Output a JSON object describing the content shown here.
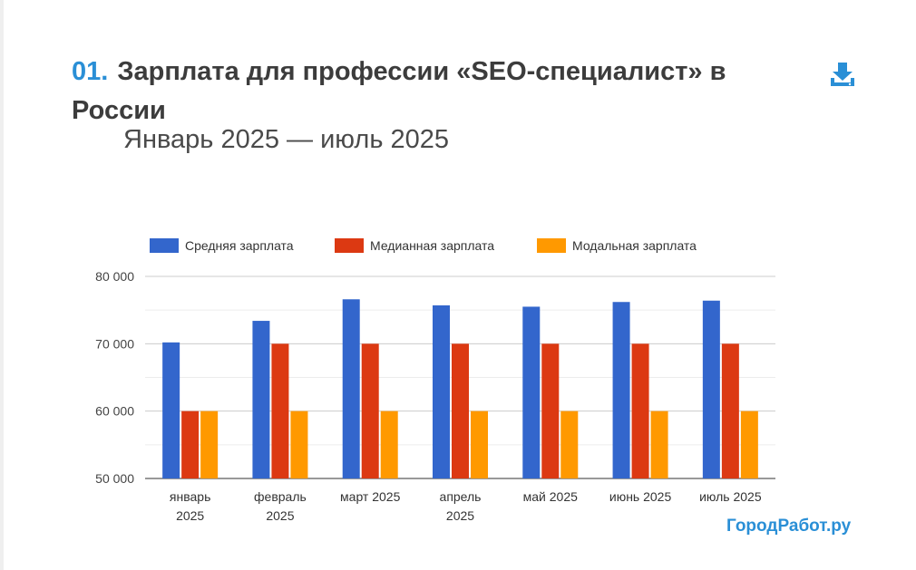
{
  "header": {
    "number": "01.",
    "title": "Зарплата для профессии «SEO-специалист» в России",
    "subtitle": "Январь 2025 — июль 2025"
  },
  "icons": {
    "download": "download-icon"
  },
  "brand": {
    "text": "ГородРабот.ру"
  },
  "colors": {
    "accent": "#2a8fd6",
    "series": [
      "#3366cc",
      "#dc3912",
      "#ff9900"
    ]
  },
  "chart_data": {
    "type": "bar",
    "categories": [
      [
        "январь",
        "2025"
      ],
      [
        "февраль",
        "2025"
      ],
      [
        "март 2025"
      ],
      [
        "апрель",
        "2025"
      ],
      [
        "май 2025"
      ],
      [
        "июнь 2025"
      ],
      [
        "июль 2025"
      ]
    ],
    "series": [
      {
        "name": "Средняя зарплата",
        "values": [
          70200,
          73400,
          76600,
          75700,
          75500,
          76200,
          76400
        ]
      },
      {
        "name": "Медианная зарплата",
        "values": [
          60000,
          70000,
          70000,
          70000,
          70000,
          70000,
          70000
        ]
      },
      {
        "name": "Модальная зарплата",
        "values": [
          60000,
          60000,
          60000,
          60000,
          60000,
          60000,
          60000
        ]
      }
    ],
    "y_ticks": [
      "50 000",
      "60 000",
      "70 000",
      "80 000"
    ],
    "ylim": [
      50000,
      80000
    ],
    "grid": true,
    "legend": "top"
  }
}
